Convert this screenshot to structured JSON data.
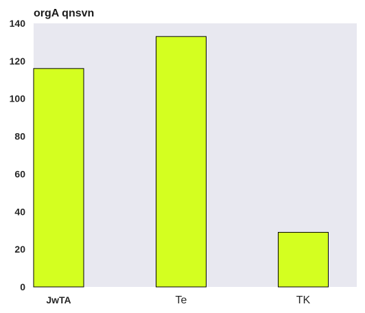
{
  "chart_data": {
    "type": "bar",
    "title": "orgA qnsvn",
    "xlabel": "",
    "ylabel": "",
    "categories": [
      "JwTA",
      "Te",
      "TK"
    ],
    "values": [
      116,
      133,
      29
    ],
    "ylim": [
      0,
      140
    ],
    "yticks": [
      0,
      20,
      40,
      60,
      80,
      100,
      120,
      140
    ],
    "grid": false,
    "colors": {
      "bar": "#d4ff20",
      "bar_edge": "#000000",
      "plot_background": "#e8e8f0"
    }
  }
}
